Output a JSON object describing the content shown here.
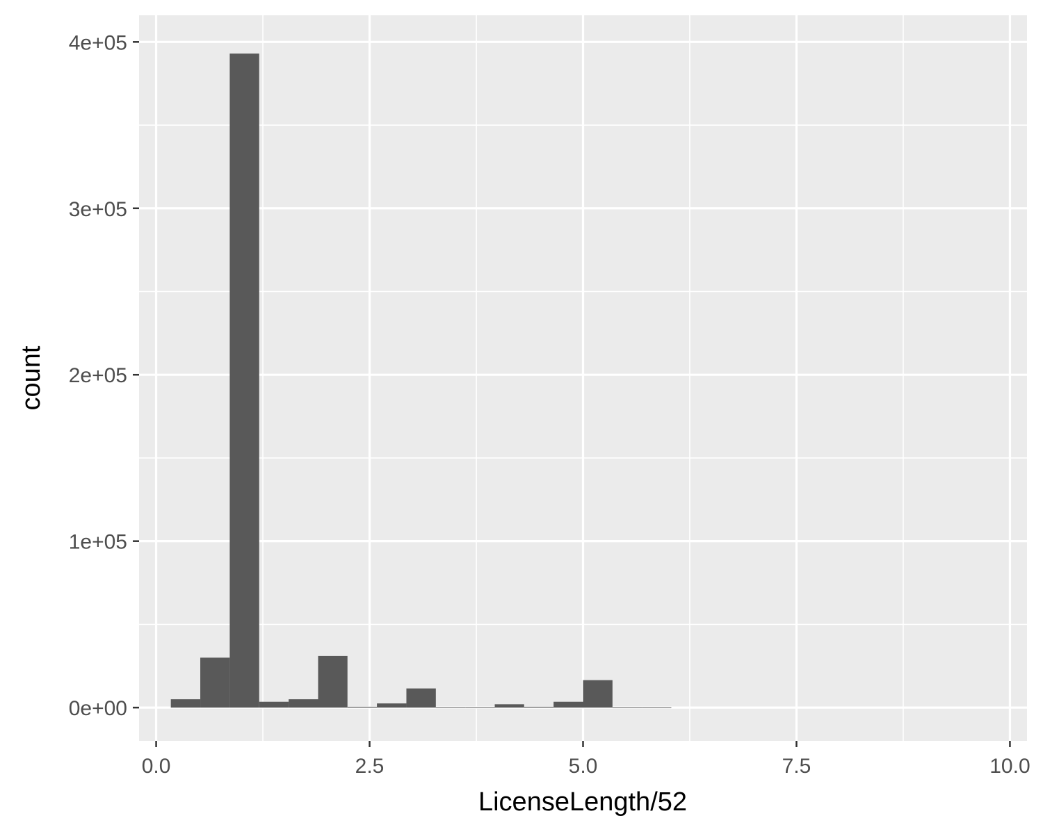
{
  "chart_data": {
    "type": "bar",
    "title": "",
    "xlabel": "LicenseLength/52",
    "ylabel": "count",
    "xlim": [
      -0.2,
      10.2
    ],
    "ylim": [
      -20000,
      416000
    ],
    "x_ticks": [
      {
        "value": 0,
        "label": "0.0"
      },
      {
        "value": 2.5,
        "label": "2.5"
      },
      {
        "value": 5,
        "label": "5.0"
      },
      {
        "value": 7.5,
        "label": "7.5"
      },
      {
        "value": 10,
        "label": "10.0"
      }
    ],
    "y_ticks": [
      {
        "value": 0,
        "label": "0e+00"
      },
      {
        "value": 100000,
        "label": "1e+05"
      },
      {
        "value": 200000,
        "label": "2e+05"
      },
      {
        "value": 300000,
        "label": "3e+05"
      },
      {
        "value": 400000,
        "label": "4e+05"
      }
    ],
    "grid": true,
    "bins": [
      {
        "x0": 0.172,
        "x1": 0.517,
        "count": 5000
      },
      {
        "x0": 0.517,
        "x1": 0.862,
        "count": 30000
      },
      {
        "x0": 0.862,
        "x1": 1.207,
        "count": 393000
      },
      {
        "x0": 1.207,
        "x1": 1.552,
        "count": 3500
      },
      {
        "x0": 1.552,
        "x1": 1.897,
        "count": 5000
      },
      {
        "x0": 1.897,
        "x1": 2.241,
        "count": 31000
      },
      {
        "x0": 2.241,
        "x1": 2.586,
        "count": 500
      },
      {
        "x0": 2.586,
        "x1": 2.931,
        "count": 2500
      },
      {
        "x0": 2.931,
        "x1": 3.276,
        "count": 11500
      },
      {
        "x0": 3.276,
        "x1": 3.621,
        "count": 200
      },
      {
        "x0": 3.621,
        "x1": 3.966,
        "count": 200
      },
      {
        "x0": 3.966,
        "x1": 4.31,
        "count": 2000
      },
      {
        "x0": 4.31,
        "x1": 4.655,
        "count": 500
      },
      {
        "x0": 4.655,
        "x1": 5.0,
        "count": 3500
      },
      {
        "x0": 5.0,
        "x1": 5.345,
        "count": 16500
      },
      {
        "x0": 5.345,
        "x1": 5.69,
        "count": 200
      },
      {
        "x0": 5.69,
        "x1": 6.034,
        "count": 200
      }
    ],
    "colors": {
      "panel": "#ebebeb",
      "grid": "#ffffff",
      "bar": "#595959",
      "tick": "#333333",
      "tick_text": "#4d4d4d",
      "title_text": "#000000"
    }
  }
}
